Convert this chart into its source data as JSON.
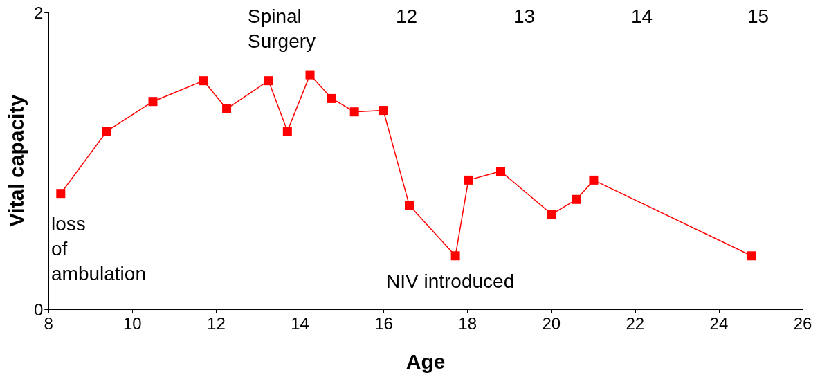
{
  "chart_data": {
    "type": "line",
    "xlabel": "Age",
    "ylabel": "Vital capacity",
    "x": [
      8.29,
      9.39,
      10.49,
      11.7,
      12.25,
      13.25,
      13.7,
      14.24,
      14.76,
      15.3,
      15.99,
      16.61,
      17.71,
      18.02,
      18.79,
      20.01,
      20.6,
      21.01,
      24.78
    ],
    "series": [
      {
        "color": "#ff0000",
        "values": [
          0.78,
          1.2,
          1.4,
          1.54,
          1.35,
          1.54,
          1.2,
          1.58,
          1.42,
          1.33,
          1.34,
          0.7,
          0.36,
          0.87,
          0.93,
          0.64,
          0.74,
          0.87,
          0.36
        ]
      }
    ],
    "xlim": [
      8,
      26
    ],
    "xticks": [
      8,
      10,
      12,
      14,
      16,
      18,
      20,
      22,
      24,
      26
    ],
    "ylim": [
      0,
      2
    ],
    "yticks": [
      0,
      {
        "value": 1,
        "label": null
      },
      2
    ],
    "annotations": [
      "Spinal\nSurgery",
      "loss\nof\nambulation",
      "NIV introduced",
      "12",
      "13",
      "14",
      "15"
    ],
    "marker": "square",
    "line_style": "solid",
    "grid": false
  }
}
